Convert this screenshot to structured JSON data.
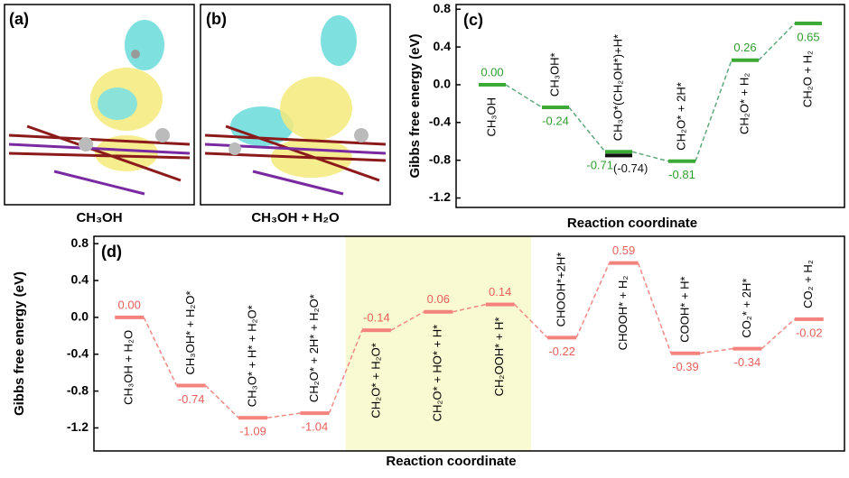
{
  "panels": [
    {
      "label": "(a)",
      "caption": "CH₃OH"
    },
    {
      "label": "(b)",
      "caption": "CH₃OH + H₂O"
    }
  ],
  "chart_data": [
    {
      "type": "energy",
      "panel_label": "(c)",
      "y_label": "Gibbs free energy (eV)",
      "x_label": "Reaction coordinate",
      "categories": [
        "CH₃OH",
        "CH₃OH*",
        "CH₃O*(CH₂OH*)+H*",
        "CH₂O* + 2H*",
        "CH₂O* + H₂",
        "CH₂O + H₂"
      ],
      "values": [
        0.0,
        -0.24,
        -0.71,
        -0.81,
        0.26,
        0.65
      ],
      "value_labels": [
        "0.00",
        "-0.24",
        "-0.71",
        "-0.81",
        "0.26",
        "0.65"
      ],
      "alt_values": [
        null,
        null,
        -0.74,
        null,
        null,
        null
      ],
      "alt_value_labels": [
        null,
        null,
        "(-0.74)",
        null,
        null,
        null
      ],
      "color": "#3aaa35",
      "alt_color": "#111111",
      "ylim": [
        -1.3,
        0.85
      ],
      "yticks": [
        -1.2,
        -0.8,
        -0.4,
        {
          "value": 0,
          "label": "0.0"
        },
        0.4,
        0.8
      ]
    },
    {
      "type": "energy",
      "panel_label": "(d)",
      "y_label": "Gibbs free energy (eV)",
      "x_label": "Reaction coordinate",
      "categories": [
        "CH₃OH + H₂O",
        "CH₃OH* + H₂O*",
        "CH₃O* + H* + H₂O*",
        "CH₂O* + 2H* + H₂O*",
        "CH₂O* + H₂O*",
        "CH₂O* + HO* + H*",
        "CH₂OOH* + H*",
        "CHOOH*+2H*",
        "CHOOH* + H₂",
        "COOH* + H*",
        "CO₂* + 2H*",
        "CO₂ + H₂"
      ],
      "values": [
        0.0,
        -0.74,
        -1.09,
        -1.04,
        -0.14,
        0.06,
        0.14,
        -0.22,
        0.59,
        -0.39,
        -0.34,
        -0.02
      ],
      "value_labels": [
        "0.00",
        "-0.74",
        "-1.09",
        "-1.04",
        "-0.14",
        "0.06",
        "0.14",
        "-0.22",
        "0.59",
        "-0.39",
        "-0.34",
        "-0.02"
      ],
      "color": "#f4837d",
      "highlight_range": [
        4,
        6
      ],
      "highlight_color": "#fafad2",
      "ylim": [
        -1.45,
        0.88
      ],
      "yticks": [
        -1.2,
        -0.8,
        -0.4,
        {
          "value": 0,
          "label": "0.0"
        },
        0.4,
        0.8
      ]
    }
  ]
}
